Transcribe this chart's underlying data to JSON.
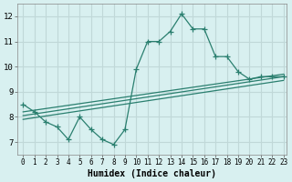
{
  "xlabel": "Humidex (Indice chaleur)",
  "bg_color": "#d8f0f0",
  "grid_color": "#c0d8d8",
  "line_color": "#2a7f6f",
  "xlim_min": -0.5,
  "xlim_max": 23.3,
  "ylim_min": 6.5,
  "ylim_max": 12.5,
  "yticks": [
    7,
    8,
    9,
    10,
    11,
    12
  ],
  "xticks": [
    0,
    1,
    2,
    3,
    4,
    5,
    6,
    7,
    8,
    9,
    10,
    11,
    12,
    13,
    14,
    15,
    16,
    17,
    18,
    19,
    20,
    21,
    22,
    23
  ],
  "main_line_x": [
    0,
    1,
    2,
    3,
    4,
    5,
    6,
    7,
    8,
    9,
    10,
    11,
    12,
    13,
    14,
    15,
    16,
    17,
    18,
    19,
    20,
    21,
    22,
    23
  ],
  "main_line_y": [
    8.5,
    8.2,
    7.8,
    7.6,
    7.1,
    8.0,
    7.5,
    7.1,
    6.9,
    7.5,
    9.9,
    11.0,
    11.0,
    11.4,
    12.1,
    11.5,
    11.5,
    10.4,
    10.4,
    9.8,
    9.5,
    9.6,
    9.6,
    9.6
  ],
  "reg_line1_x": [
    0,
    23
  ],
  "reg_line1_y": [
    8.2,
    9.7
  ],
  "reg_line2_x": [
    0,
    23
  ],
  "reg_line2_y": [
    8.05,
    9.6
  ],
  "reg_line3_x": [
    0,
    23
  ],
  "reg_line3_y": [
    7.9,
    9.45
  ]
}
